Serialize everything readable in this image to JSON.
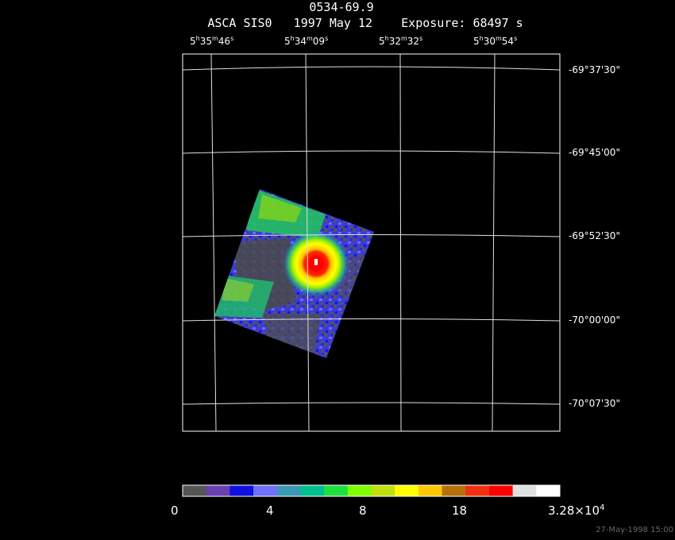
{
  "header": {
    "object": "0534-69.9",
    "subtitle": "ASCA SIS0   1997 May 12    Exposure: 68497 s"
  },
  "ra_ticks": [
    {
      "h": "5",
      "hs": "h",
      "m": "35",
      "ms": "m",
      "s": "46",
      "ss": "s"
    },
    {
      "h": "5",
      "hs": "h",
      "m": "34",
      "ms": "m",
      "s": "09",
      "ss": "s"
    },
    {
      "h": "5",
      "hs": "h",
      "m": "32",
      "ms": "m",
      "s": "32",
      "ss": "s"
    },
    {
      "h": "5",
      "hs": "h",
      "m": "30",
      "ms": "m",
      "s": "54",
      "ss": "s"
    }
  ],
  "dec_ticks": [
    "-69°37'30\"",
    "-69°45'00\"",
    "-69°52'30\"",
    "-70°00'00\"",
    "-70°07'30\""
  ],
  "colorbar": {
    "colors": [
      "#555555",
      "#6a3fb0",
      "#1010e0",
      "#7070ff",
      "#3a9ab5",
      "#00c090",
      "#20e040",
      "#80ff00",
      "#c0e010",
      "#ffff00",
      "#ffc800",
      "#b87008",
      "#f03010",
      "#ff0000",
      "#e0e0e0",
      "#ffffff"
    ],
    "labels": [
      {
        "text": "0"
      },
      {
        "text": "4"
      },
      {
        "text": "8"
      },
      {
        "text": "18"
      },
      {
        "text": "3.28×10",
        "exp": "4"
      }
    ]
  },
  "footer": {
    "timestamp": "27-May-1998 15:00"
  }
}
